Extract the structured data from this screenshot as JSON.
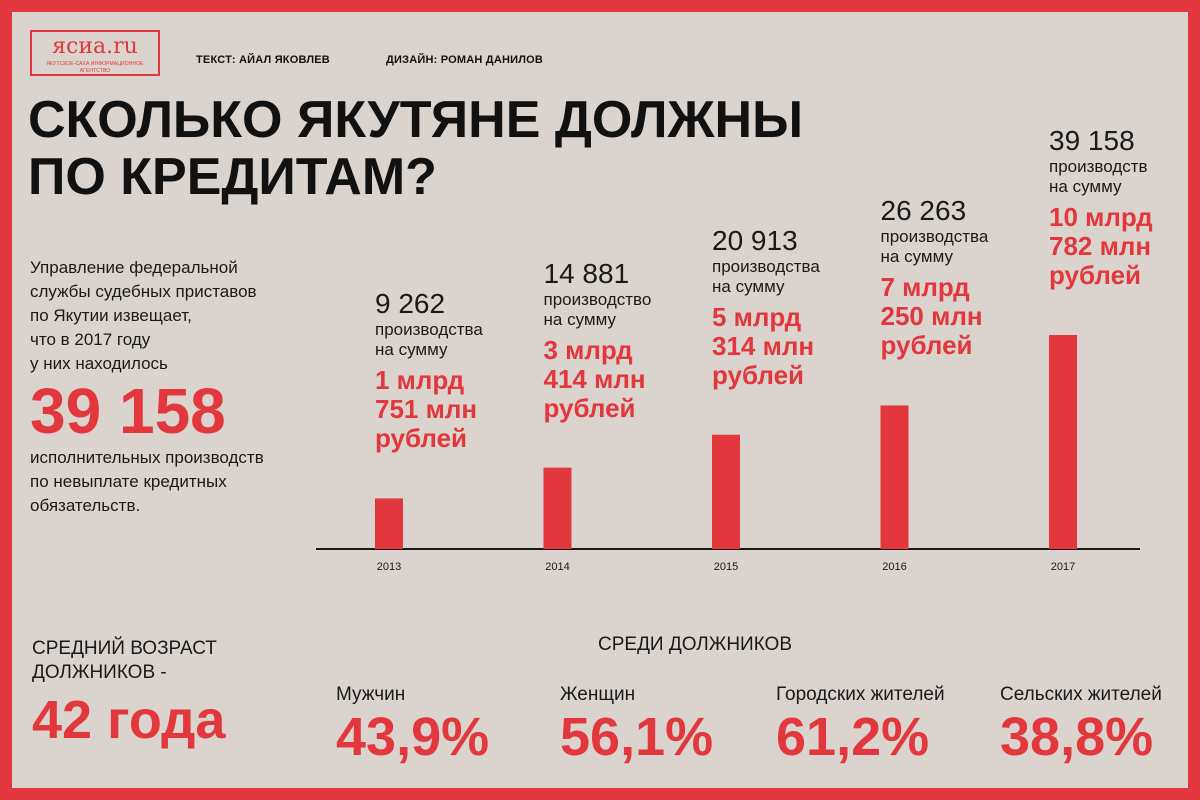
{
  "logo": {
    "name": "ясиа.ru",
    "tagline": "ЯКУТСКОЕ-САХА ИНФОРМАЦИОННОЕ АГЕНТСТВО"
  },
  "credits": {
    "text": "ТЕКСТ: АЙАЛ ЯКОВЛЕВ",
    "design": "ДИЗАЙН: РОМАН ДАНИЛОВ"
  },
  "title": {
    "line1": "СКОЛЬКО ЯКУТЯНЕ ДОЛЖНЫ",
    "line2": "ПО КРЕДИТАМ?"
  },
  "intro": {
    "lines": [
      "Управление федеральной",
      "службы судебных приставов",
      "по Якутии извещает,",
      "что в 2017 году",
      "у них находилось"
    ],
    "big": "39 158",
    "after": [
      "исполнительных производств",
      "по невыплате кредитных",
      "обязательств."
    ]
  },
  "colors": {
    "accent": "#e2373c",
    "background": "#dbd3cd",
    "text": "#1a1a1a"
  },
  "chart_data": {
    "type": "bar",
    "categories": [
      "2013",
      "2014",
      "2015",
      "2016",
      "2017"
    ],
    "values": [
      9262,
      14881,
      20913,
      26263,
      39158
    ],
    "counts_text": [
      "9 262",
      "14 881",
      "20 913",
      "26 263",
      "39 158"
    ],
    "desc_line1": [
      "производства",
      "производство",
      "производства",
      "производства",
      "производств"
    ],
    "desc_line2": "на сумму",
    "sums": [
      [
        "1 млрд",
        "751 млн",
        "рублей"
      ],
      [
        "3 млрд",
        "414 млн",
        "рублей"
      ],
      [
        "5 млрд",
        "314 млн",
        "рублей"
      ],
      [
        "7 млрд",
        "250 млн",
        "рублей"
      ],
      [
        "10 млрд",
        "782 млн",
        "рублей"
      ]
    ],
    "ylim": [
      0,
      39158
    ]
  },
  "age": {
    "label_line1": "СРЕДНИЙ ВОЗРАСТ",
    "label_line2": "ДОЛЖНИКОВ -",
    "value": "42 года"
  },
  "among": {
    "title": "СРЕДИ ДОЛЖНИКОВ",
    "stats": [
      {
        "label": "Мужчин",
        "value": "43,9%"
      },
      {
        "label": "Женщин",
        "value": "56,1%"
      },
      {
        "label": "Городских жителей",
        "value": "61,2%"
      },
      {
        "label": "Сельских жителей",
        "value": "38,8%"
      }
    ]
  }
}
